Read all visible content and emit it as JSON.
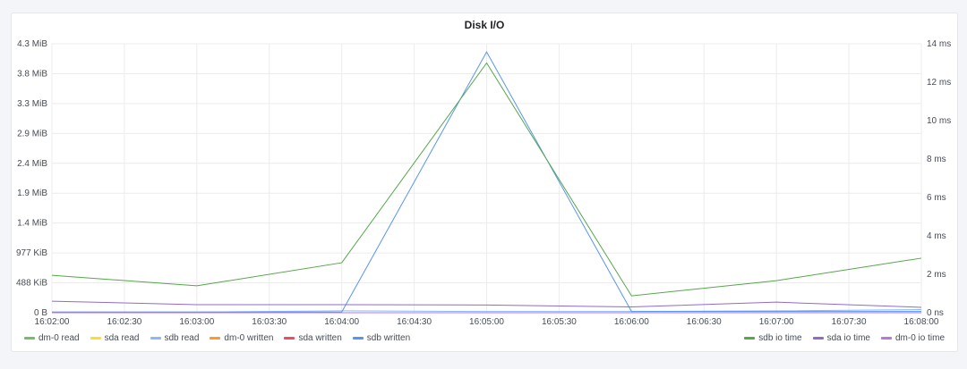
{
  "chart_data": {
    "type": "line",
    "title": "Disk I/O",
    "x": [
      "16:02:00",
      "16:03:00",
      "16:04:00",
      "16:05:00",
      "16:06:00",
      "16:07:00",
      "16:08:00"
    ],
    "x_ticks": [
      "16:02:00",
      "16:02:30",
      "16:03:00",
      "16:03:30",
      "16:04:00",
      "16:04:30",
      "16:05:00",
      "16:05:30",
      "16:06:00",
      "16:06:30",
      "16:07:00",
      "16:07:30",
      "16:08:00"
    ],
    "y_left": {
      "unit": "MiB",
      "ylim": [
        0,
        4.3
      ],
      "ticks": [
        "0 B",
        "488 KiB",
        "977 KiB",
        "1.4 MiB",
        "1.9 MiB",
        "2.4 MiB",
        "2.9 MiB",
        "3.3 MiB",
        "3.8 MiB",
        "4.3 MiB"
      ]
    },
    "y_right": {
      "unit": "ms",
      "ylim": [
        0,
        14
      ],
      "ticks": [
        "0 ns",
        "2 ms",
        "4 ms",
        "6 ms",
        "8 ms",
        "10 ms",
        "12 ms",
        "14 ms"
      ]
    },
    "grid": true,
    "legend_placement": "bottom",
    "series": [
      {
        "name": "dm-0 read",
        "color": "#73bf69",
        "axis": "left",
        "values": [
          0,
          0,
          0,
          0,
          0,
          0,
          0
        ]
      },
      {
        "name": "sda read",
        "color": "#fade2a",
        "axis": "left",
        "values": [
          0,
          0,
          0,
          0,
          0,
          0,
          0
        ]
      },
      {
        "name": "sdb read",
        "color": "#8ab8ff",
        "axis": "left",
        "values": [
          0.01,
          0.01,
          0.03,
          0.02,
          0.02,
          0.03,
          0.05
        ]
      },
      {
        "name": "dm-0 written",
        "color": "#ff9830",
        "axis": "left",
        "values": [
          0,
          0,
          0,
          0,
          0,
          0,
          0
        ]
      },
      {
        "name": "sda written",
        "color": "#f2495c",
        "axis": "left",
        "values": [
          0,
          0,
          0,
          0,
          0,
          0,
          0
        ]
      },
      {
        "name": "sdb written",
        "color": "#5794f2",
        "axis": "left",
        "values": [
          0.01,
          0.01,
          0.01,
          4.17,
          0.02,
          0.02,
          0.02
        ]
      },
      {
        "name": "sdb io time",
        "color": "#56a64b",
        "axis": "right",
        "values": [
          1.95,
          1.4,
          2.6,
          13.0,
          0.88,
          1.67,
          2.84
        ]
      },
      {
        "name": "sda io time",
        "color": "#8f6cc9",
        "axis": "right",
        "values": [
          0.6,
          0.42,
          0.42,
          0.4,
          0.3,
          0.55,
          0.28
        ]
      },
      {
        "name": "dm-0 io time",
        "color": "#b877d9",
        "axis": "right",
        "values": [
          0,
          0,
          0,
          0,
          0,
          0,
          0
        ]
      }
    ]
  }
}
